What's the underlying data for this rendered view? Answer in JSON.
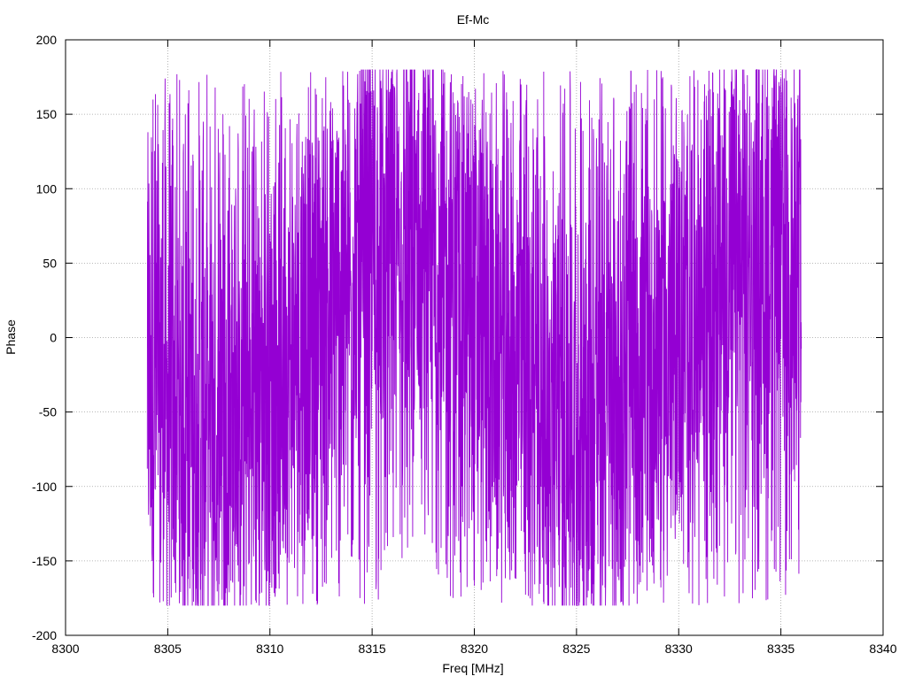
{
  "chart_data": {
    "type": "line",
    "title": "Ef-Mc",
    "xlabel": "Freq [MHz]",
    "ylabel": "Phase",
    "xlim": [
      8300,
      8340
    ],
    "ylim": [
      -200,
      200
    ],
    "x_ticks": [
      8300,
      8305,
      8310,
      8315,
      8320,
      8325,
      8330,
      8335,
      8340
    ],
    "y_ticks": [
      -200,
      -150,
      -100,
      -50,
      0,
      50,
      100,
      150,
      200
    ],
    "grid": true,
    "grid_style": "dotted",
    "legend": "none",
    "series": [
      {
        "color": "#9400d3",
        "x_range": [
          8304,
          8336
        ],
        "y_min": -180,
        "y_max": 180,
        "description_of_shape": "dense phase-wrapping signal; full range -180..180 throughout with denser central bands near 8305, 8310, 8320, 8330, 8335 MHz"
      }
    ]
  }
}
